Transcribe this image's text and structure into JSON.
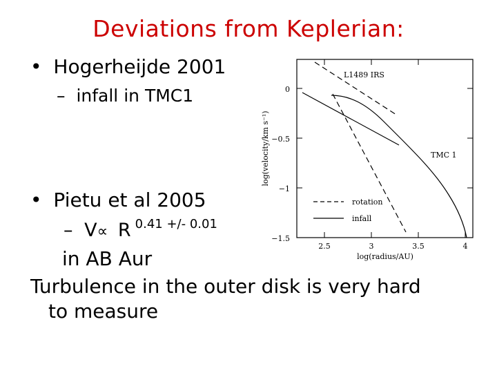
{
  "slide": {
    "title": "Deviations from Keplerian:",
    "bullet1": {
      "marker": "•",
      "text": "Hogerheijde 2001"
    },
    "sub1": {
      "marker": "–",
      "text": "infall in TMC1"
    },
    "bullet2": {
      "marker": "•",
      "text": "Pietu et al 2005"
    },
    "sub2": {
      "marker": "–",
      "lhs": "V",
      "prop": "∝",
      "rhs": "R",
      "exponent": "0.41 +/- 0.01"
    },
    "sub2_cont": "in AB Aur",
    "footer_line1": "Turbulence in the outer disk is very hard",
    "footer_line2": "to measure",
    "title_color": "#cc0000"
  },
  "figure": {
    "label_top": "L1489 IRS",
    "label_curve": "TMC 1",
    "ylabel": "log(velocity/km s⁻¹)",
    "xlabel": "log(radius/AU)",
    "yticks": [
      "0",
      "−0.5",
      "−1",
      "−1.5"
    ],
    "xticks": [
      "2.5",
      "3",
      "3.5",
      "4"
    ],
    "legend": [
      {
        "label": "rotation",
        "style": "dashed"
      },
      {
        "label": "infall",
        "style": "solid"
      }
    ]
  }
}
